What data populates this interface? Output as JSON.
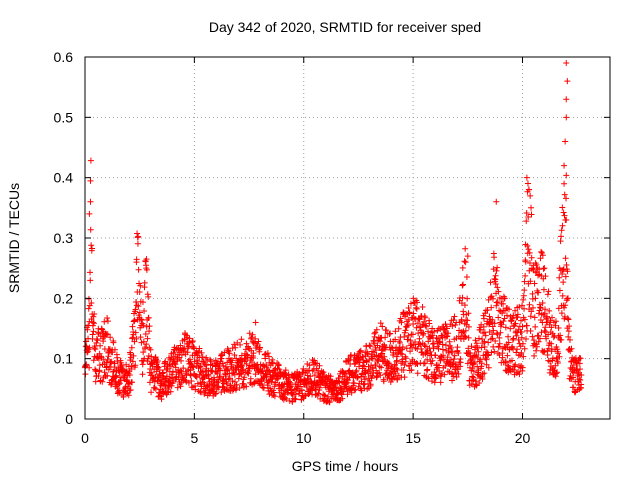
{
  "chart_data": {
    "type": "scatter",
    "title": "Day 342 of 2020, SRMTID for receiver sped",
    "xlabel": "GPS time / hours",
    "ylabel": "SRMTID / TECUs",
    "xlim": [
      0,
      24
    ],
    "ylim": [
      0,
      0.6
    ],
    "xticks": [
      0,
      5,
      10,
      15,
      20
    ],
    "yticks": [
      0,
      0.1,
      0.2,
      0.3,
      0.4,
      0.5,
      0.6
    ],
    "grid": true,
    "marker": "+",
    "color": "#ff0000",
    "sample_interval_hours": 0.01,
    "series": [
      {
        "name": "SRMTID",
        "x_start": 0,
        "x_end": 22.7,
        "envelope": [
          [
            0.0,
            0.07
          ],
          [
            0.2,
            0.15
          ],
          [
            0.25,
            0.33
          ],
          [
            0.35,
            0.2
          ],
          [
            0.5,
            0.1
          ],
          [
            0.8,
            0.11
          ],
          [
            1.0,
            0.12
          ],
          [
            1.5,
            0.07
          ],
          [
            2.0,
            0.06
          ],
          [
            2.3,
            0.15
          ],
          [
            2.4,
            0.23
          ],
          [
            2.6,
            0.12
          ],
          [
            2.8,
            0.2
          ],
          [
            3.0,
            0.08
          ],
          [
            3.5,
            0.06
          ],
          [
            4.0,
            0.08
          ],
          [
            4.5,
            0.1
          ],
          [
            5.0,
            0.09
          ],
          [
            5.5,
            0.07
          ],
          [
            6.0,
            0.07
          ],
          [
            6.5,
            0.08
          ],
          [
            7.0,
            0.09
          ],
          [
            7.5,
            0.1
          ],
          [
            8.0,
            0.09
          ],
          [
            8.5,
            0.07
          ],
          [
            9.0,
            0.06
          ],
          [
            9.5,
            0.05
          ],
          [
            10.0,
            0.06
          ],
          [
            10.5,
            0.07
          ],
          [
            11.0,
            0.05
          ],
          [
            11.5,
            0.05
          ],
          [
            12.0,
            0.07
          ],
          [
            12.5,
            0.08
          ],
          [
            13.0,
            0.09
          ],
          [
            13.5,
            0.11
          ],
          [
            14.0,
            0.1
          ],
          [
            14.5,
            0.12
          ],
          [
            15.0,
            0.14
          ],
          [
            15.5,
            0.13
          ],
          [
            16.0,
            0.1
          ],
          [
            16.5,
            0.11
          ],
          [
            17.0,
            0.12
          ],
          [
            17.4,
            0.2
          ],
          [
            17.6,
            0.08
          ],
          [
            18.0,
            0.1
          ],
          [
            18.5,
            0.15
          ],
          [
            18.8,
            0.22
          ],
          [
            19.0,
            0.15
          ],
          [
            19.5,
            0.12
          ],
          [
            20.0,
            0.14
          ],
          [
            20.3,
            0.3
          ],
          [
            20.5,
            0.18
          ],
          [
            21.0,
            0.2
          ],
          [
            21.3,
            0.12
          ],
          [
            21.6,
            0.11
          ],
          [
            21.8,
            0.25
          ],
          [
            22.0,
            0.28
          ],
          [
            22.1,
            0.12
          ],
          [
            22.3,
            0.08
          ],
          [
            22.7,
            0.07
          ]
        ],
        "spikes": [
          [
            0.25,
            0.36
          ],
          [
            0.2,
            0.34
          ],
          [
            2.35,
            0.26
          ],
          [
            2.8,
            0.25
          ],
          [
            7.8,
            0.16
          ],
          [
            17.5,
            0.27
          ],
          [
            18.8,
            0.36
          ],
          [
            20.2,
            0.4
          ],
          [
            20.3,
            0.38
          ],
          [
            21.0,
            0.25
          ],
          [
            21.9,
            0.42
          ],
          [
            21.95,
            0.46
          ],
          [
            22.0,
            0.5
          ],
          [
            22.0,
            0.53
          ],
          [
            22.05,
            0.56
          ],
          [
            22.0,
            0.59
          ],
          [
            21.9,
            0.39
          ],
          [
            22.0,
            0.33
          ]
        ]
      }
    ]
  }
}
